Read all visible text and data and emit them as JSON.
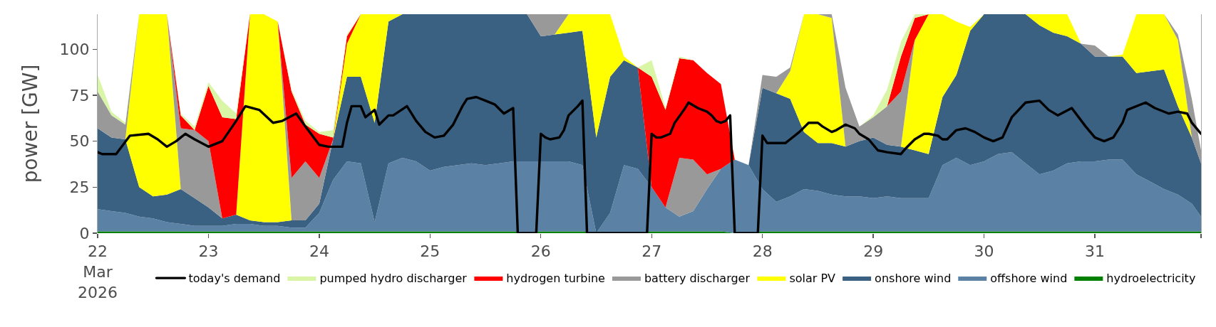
{
  "chart_data": {
    "type": "area",
    "stacked": true,
    "ylabel": "power [GW]",
    "x": [
      "2026-03-22T00:00",
      "2026-03-22T03:00",
      "2026-03-22T06:00",
      "2026-03-22T09:00",
      "2026-03-22T12:00",
      "2026-03-22T15:00",
      "2026-03-22T18:00",
      "2026-03-22T21:00",
      "2026-03-23T00:00",
      "2026-03-23T03:00",
      "2026-03-23T06:00",
      "2026-03-23T09:00",
      "2026-03-23T12:00",
      "2026-03-23T15:00",
      "2026-03-23T18:00",
      "2026-03-23T21:00",
      "2026-03-24T00:00",
      "2026-03-24T03:00",
      "2026-03-24T06:00",
      "2026-03-24T09:00",
      "2026-03-24T12:00",
      "2026-03-24T15:00",
      "2026-03-24T18:00",
      "2026-03-24T21:00",
      "2026-03-25T00:00",
      "2026-03-25T03:00",
      "2026-03-25T06:00",
      "2026-03-25T09:00",
      "2026-03-25T12:00",
      "2026-03-25T15:00",
      "2026-03-25T18:00",
      "2026-03-25T21:00",
      "2026-03-26T00:00",
      "2026-03-26T03:00",
      "2026-03-26T06:00",
      "2026-03-26T09:00",
      "2026-03-26T12:00",
      "2026-03-26T15:00",
      "2026-03-26T18:00",
      "2026-03-26T21:00",
      "2026-03-27T00:00",
      "2026-03-27T03:00",
      "2026-03-27T06:00",
      "2026-03-27T09:00",
      "2026-03-27T12:00",
      "2026-03-27T15:00",
      "2026-03-27T18:00",
      "2026-03-27T21:00",
      "2026-03-28T00:00",
      "2026-03-28T03:00",
      "2026-03-28T06:00",
      "2026-03-28T09:00",
      "2026-03-28T12:00",
      "2026-03-28T15:00",
      "2026-03-28T18:00",
      "2026-03-28T21:00",
      "2026-03-29T00:00",
      "2026-03-29T03:00",
      "2026-03-29T06:00",
      "2026-03-29T09:00",
      "2026-03-29T12:00",
      "2026-03-29T15:00",
      "2026-03-29T18:00",
      "2026-03-29T21:00",
      "2026-03-30T00:00",
      "2026-03-30T03:00",
      "2026-03-30T06:00",
      "2026-03-30T09:00",
      "2026-03-30T12:00",
      "2026-03-30T15:00",
      "2026-03-30T18:00",
      "2026-03-30T21:00",
      "2026-03-31T00:00",
      "2026-03-31T03:00",
      "2026-03-31T06:00",
      "2026-03-31T09:00",
      "2026-03-31T12:00",
      "2026-03-31T15:00",
      "2026-03-31T18:00",
      "2026-03-31T21:00",
      "2026-03-31T23:00"
    ],
    "series": [
      {
        "name": "hydroelectricity",
        "color": "#008000",
        "values": [
          1,
          1,
          1,
          1,
          1,
          1,
          1,
          1,
          1,
          1,
          1,
          1,
          1,
          1,
          1,
          1,
          1,
          1,
          1,
          1,
          1,
          1,
          1,
          1,
          1,
          1,
          1,
          1,
          1,
          1,
          1,
          0,
          1,
          1,
          1,
          1,
          0,
          0,
          0,
          0,
          1,
          1,
          1,
          1,
          1,
          1,
          0,
          0,
          1,
          1,
          1,
          1,
          1,
          1,
          1,
          1,
          1,
          1,
          1,
          1,
          1,
          1,
          1,
          1,
          1,
          1,
          1,
          1,
          1,
          1,
          1,
          1,
          1,
          1,
          1,
          1,
          1,
          1,
          1,
          1,
          1
        ]
      },
      {
        "name": "offshore wind",
        "color": "#5b82a5",
        "values": [
          12,
          11,
          10,
          8,
          7,
          5,
          4,
          3,
          3,
          3,
          4,
          4,
          3,
          3,
          2,
          2,
          10,
          28,
          38,
          37,
          5,
          37,
          40,
          38,
          33,
          35,
          36,
          37,
          36,
          37,
          38,
          39,
          38,
          38,
          38,
          36,
          0,
          11,
          37,
          35,
          24,
          13,
          8,
          11,
          23,
          34,
          40,
          37,
          23,
          16,
          19,
          23,
          22,
          20,
          19,
          19,
          18,
          19,
          18,
          18,
          18,
          36,
          40,
          36,
          38,
          42,
          43,
          37,
          31,
          33,
          37,
          38,
          38,
          39,
          39,
          31,
          27,
          23,
          20,
          15,
          8
        ]
      },
      {
        "name": "onshore wind",
        "color": "#3b6182",
        "values": [
          44,
          40,
          40,
          16,
          12,
          15,
          19,
          15,
          10,
          4,
          5,
          2,
          2,
          2,
          4,
          4,
          5,
          22,
          46,
          47,
          54,
          77,
          78,
          80,
          85,
          83,
          82,
          81,
          82,
          81,
          80,
          80,
          68,
          69,
          70,
          73,
          52,
          74,
          57,
          55,
          0,
          0,
          0,
          0,
          0,
          0,
          0,
          0,
          55,
          59,
          53,
          31,
          26,
          28,
          27,
          30,
          33,
          28,
          28,
          26,
          24,
          37,
          45,
          73,
          80,
          76,
          75,
          81,
          81,
          75,
          69,
          64,
          57,
          56,
          56,
          55,
          60,
          65,
          48,
          36,
          29
        ]
      },
      {
        "name": "solar PV",
        "color": "#ffff00",
        "values": [
          0,
          0,
          0,
          94,
          99,
          98,
          0,
          0,
          0,
          0,
          0,
          112,
          113,
          109,
          0,
          0,
          0,
          0,
          18,
          34,
          59,
          4,
          0,
          0,
          0,
          0,
          0,
          0,
          0,
          0,
          0,
          0,
          0,
          0,
          10,
          9,
          67,
          34,
          2,
          0,
          0,
          0,
          0,
          0,
          0,
          0,
          0,
          0,
          0,
          0,
          15,
          64,
          70,
          68,
          0,
          0,
          0,
          0,
          0,
          60,
          76,
          45,
          29,
          2,
          0,
          0,
          0,
          0,
          6,
          10,
          12,
          0,
          0,
          0,
          1,
          32,
          31,
          30,
          36,
          0,
          0
        ]
      },
      {
        "name": "battery discharger",
        "color": "#999999",
        "values": [
          20,
          12,
          8,
          0,
          0,
          0,
          33,
          37,
          36,
          0,
          0,
          0,
          0,
          0,
          23,
          32,
          14,
          0,
          0,
          0,
          0,
          0,
          0,
          0,
          0,
          0,
          0,
          0,
          0,
          0,
          0,
          0,
          12,
          11,
          0,
          0,
          0,
          0,
          0,
          0,
          0,
          0,
          32,
          28,
          8,
          0,
          0,
          0,
          7,
          9,
          2,
          0,
          0,
          2,
          32,
          8,
          11,
          21,
          30,
          0,
          0,
          0,
          0,
          0,
          0,
          0,
          0,
          0,
          0,
          0,
          0,
          0,
          6,
          0,
          0,
          0,
          0,
          0,
          3,
          21,
          7
        ]
      },
      {
        "name": "hydrogen turbine",
        "color": "#ff0000",
        "values": [
          0,
          0,
          0,
          0,
          0,
          0,
          7,
          0,
          30,
          55,
          52,
          0,
          0,
          0,
          47,
          20,
          24,
          1,
          4,
          0,
          0,
          0,
          0,
          0,
          0,
          0,
          0,
          0,
          0,
          0,
          0,
          0,
          0,
          0,
          0,
          0,
          0,
          0,
          0,
          0,
          60,
          53,
          54,
          54,
          55,
          46,
          0,
          0,
          0,
          0,
          0,
          0,
          0,
          0,
          0,
          0,
          0,
          0,
          19,
          12,
          0,
          0,
          0,
          0,
          0,
          0,
          0,
          0,
          0,
          0,
          0,
          0,
          0,
          0,
          0,
          0,
          0,
          0,
          0,
          0,
          0
        ]
      },
      {
        "name": "pumped hydro discharger",
        "color": "#d9f5a6",
        "values": [
          9,
          2,
          1,
          0,
          0,
          0,
          1,
          2,
          2,
          9,
          3,
          0,
          0,
          0,
          1,
          2,
          1,
          4,
          1,
          0,
          0,
          0,
          0,
          0,
          0,
          0,
          0,
          0,
          0,
          0,
          0,
          0,
          0,
          0,
          0,
          0,
          0,
          0,
          0,
          0,
          9,
          1,
          1,
          0,
          0,
          0,
          0,
          0,
          0,
          0,
          0,
          0,
          0,
          0,
          0,
          0,
          1,
          9,
          8,
          2,
          0,
          0,
          0,
          0,
          0,
          0,
          0,
          0,
          0,
          0,
          0,
          0,
          0,
          0,
          0,
          0,
          0,
          0,
          0,
          0,
          0
        ]
      },
      {
        "name": "today's demand",
        "type": "line",
        "color": "#000000",
        "x": [
          "2026-03-22T00:00",
          "2026-03-22T01:00",
          "2026-03-22T04:00",
          "2026-03-22T07:00",
          "2026-03-22T11:00",
          "2026-03-22T13:00",
          "2026-03-22T15:00",
          "2026-03-22T17:00",
          "2026-03-22T19:00",
          "2026-03-22T21:00",
          "2026-03-23T00:00",
          "2026-03-23T03:00",
          "2026-03-23T06:00",
          "2026-03-23T08:00",
          "2026-03-23T11:00",
          "2026-03-23T14:00",
          "2026-03-23T16:00",
          "2026-03-23T19:00",
          "2026-03-23T21:00",
          "2026-03-24T00:00",
          "2026-03-24T02:00",
          "2026-03-24T05:00",
          "2026-03-24T06:00",
          "2026-03-24T07:00",
          "2026-03-24T09:00",
          "2026-03-24T10:00",
          "2026-03-24T12:00",
          "2026-03-24T13:00",
          "2026-03-24T15:00",
          "2026-03-24T16:00",
          "2026-03-24T19:00",
          "2026-03-24T21:00",
          "2026-03-24T23:00",
          "2026-03-25T01:00",
          "2026-03-25T03:00",
          "2026-03-25T05:00",
          "2026-03-25T07:00",
          "2026-03-25T08:00",
          "2026-03-25T10:00",
          "2026-03-25T12:00",
          "2026-03-25T14:00",
          "2026-03-25T16:00",
          "2026-03-25T18:00",
          "2026-03-25T19:00",
          "2026-03-25T23:00",
          "2026-03-26T00:00",
          "2026-03-26T01:00",
          "2026-03-26T02:00",
          "2026-03-26T04:00",
          "2026-03-26T05:00",
          "2026-03-26T06:00",
          "2026-03-26T08:00",
          "2026-03-26T09:00",
          "2026-03-26T10:00",
          "2026-03-26T23:00",
          "2026-03-27T00:00",
          "2026-03-27T01:00",
          "2026-03-27T02:00",
          "2026-03-27T04:00",
          "2026-03-27T05:00",
          "2026-03-27T07:00",
          "2026-03-27T08:00",
          "2026-03-27T10:00",
          "2026-03-27T12:00",
          "2026-03-27T13:00",
          "2026-03-27T14:00",
          "2026-03-27T15:00",
          "2026-03-27T16:00",
          "2026-03-27T17:00",
          "2026-03-27T18:00",
          "2026-03-27T23:00",
          "2026-03-28T00:00",
          "2026-03-28T01:00",
          "2026-03-28T05:00",
          "2026-03-28T06:00",
          "2026-03-28T08:00",
          "2026-03-28T10:00",
          "2026-03-28T12:00",
          "2026-03-28T13:00",
          "2026-03-28T15:00",
          "2026-03-28T16:00",
          "2026-03-28T18:00",
          "2026-03-28T20:00",
          "2026-03-28T21:00",
          "2026-03-28T23:00",
          "2026-03-29T01:00",
          "2026-03-29T03:00",
          "2026-03-29T06:00",
          "2026-03-29T07:00",
          "2026-03-29T09:00",
          "2026-03-29T11:00",
          "2026-03-29T12:00",
          "2026-03-29T14:00",
          "2026-03-29T15:00",
          "2026-03-29T16:00",
          "2026-03-29T18:00",
          "2026-03-29T20:00",
          "2026-03-29T22:00",
          "2026-03-30T00:00",
          "2026-03-30T02:00",
          "2026-03-30T04:00",
          "2026-03-30T06:00",
          "2026-03-30T09:00",
          "2026-03-30T12:00",
          "2026-03-30T14:00",
          "2026-03-30T16:00",
          "2026-03-30T19:00",
          "2026-03-30T22:00",
          "2026-03-31T00:00",
          "2026-03-31T02:00",
          "2026-03-31T04:00",
          "2026-03-31T06:00",
          "2026-03-31T07:00",
          "2026-03-31T11:00",
          "2026-03-31T13:00",
          "2026-03-31T16:00",
          "2026-03-31T18:00",
          "2026-03-31T20:00",
          "2026-03-31T21:00",
          "2026-03-31T23:00"
        ],
        "values": [
          44,
          43,
          43,
          53,
          54,
          51,
          47,
          50,
          54,
          51,
          47,
          50,
          61,
          69,
          67,
          60,
          61,
          65,
          58,
          48,
          47,
          47,
          60,
          69,
          69,
          63,
          67,
          59,
          64,
          64,
          69,
          61,
          55,
          52,
          53,
          59,
          69,
          73,
          74,
          72,
          70,
          65,
          68,
          0,
          0,
          54,
          52,
          51,
          52,
          56,
          64,
          69,
          72,
          0,
          0,
          54,
          52,
          52,
          54,
          60,
          67,
          71,
          68,
          66,
          64,
          61,
          60,
          61,
          64,
          0,
          0,
          53,
          49,
          49,
          51,
          55,
          60,
          60,
          58,
          55,
          56,
          59,
          57,
          54,
          51,
          45,
          44,
          43,
          46,
          51,
          54,
          54,
          53,
          51,
          51,
          56,
          57,
          55,
          52,
          50,
          52,
          63,
          71,
          72,
          67,
          64,
          68,
          58,
          52,
          50,
          52,
          60,
          67,
          71,
          68,
          65,
          66,
          65,
          60,
          54
        ]
      }
    ],
    "xlim": [
      "2026-03-22T00:00",
      "2026-03-31T23:00"
    ],
    "xticks": [
      {
        "value": "2026-03-22",
        "label": "22\nMar\n2026"
      },
      {
        "value": "2026-03-23",
        "label": "23"
      },
      {
        "value": "2026-03-24",
        "label": "24"
      },
      {
        "value": "2026-03-25",
        "label": "25"
      },
      {
        "value": "2026-03-26",
        "label": "26"
      },
      {
        "value": "2026-03-27",
        "label": "27"
      },
      {
        "value": "2026-03-28",
        "label": "28"
      },
      {
        "value": "2026-03-29",
        "label": "29"
      },
      {
        "value": "2026-03-30",
        "label": "30"
      },
      {
        "value": "2026-03-31",
        "label": "31"
      },
      {
        "value": "2026-03-31T23:00",
        "label": null
      }
    ],
    "ylim": [
      0,
      119
    ],
    "yticks": [
      0,
      25,
      50,
      75,
      100
    ],
    "grid": false,
    "legend": "bottom"
  }
}
